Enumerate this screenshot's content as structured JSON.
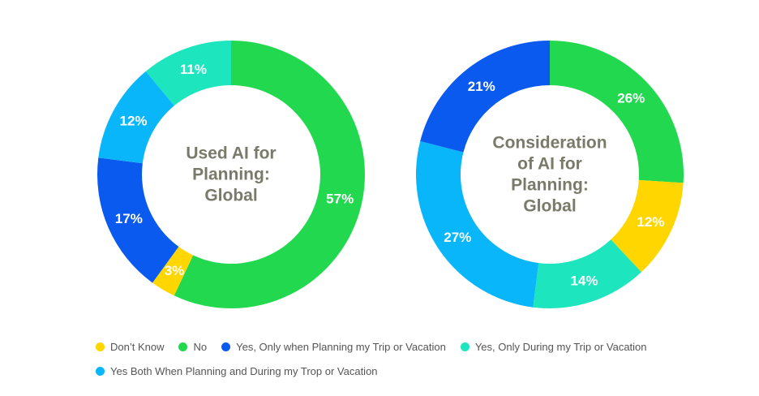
{
  "colors": {
    "dont_know": "#FFD600",
    "no": "#21D84F",
    "yes_planning": "#0A5AF0",
    "yes_during": "#1DE5BE",
    "yes_both": "#09B6FA",
    "center_text": "#7A7A6A",
    "label_text": "#FFFFFF"
  },
  "chart_data": [
    {
      "type": "pie",
      "style": "donut",
      "title_lines": [
        "Used AI for",
        "Planning:",
        "Global"
      ],
      "slices": [
        {
          "key": "no",
          "label": "No",
          "value": 57,
          "display": "57%"
        },
        {
          "key": "dont_know",
          "label": "Don't Know",
          "value": 3,
          "display": "3%"
        },
        {
          "key": "yes_planning",
          "label": "Yes, Only when Planning my Trip or Vacation",
          "value": 17,
          "display": "17%"
        },
        {
          "key": "yes_both",
          "label": "Yes Both When Planning and During my Trop or Vacation",
          "value": 12,
          "display": "12%"
        },
        {
          "key": "yes_during",
          "label": "Yes, Only During my Trip or Vacation",
          "value": 11,
          "display": "11%"
        }
      ]
    },
    {
      "type": "pie",
      "style": "donut",
      "title_lines": [
        "Consideration",
        "of AI for",
        "Planning:",
        "Global"
      ],
      "slices": [
        {
          "key": "no",
          "label": "No",
          "value": 26,
          "display": "26%"
        },
        {
          "key": "dont_know",
          "label": "Don't Know",
          "value": 12,
          "display": "12%"
        },
        {
          "key": "yes_during",
          "label": "Yes, Only During my Trip or Vacation",
          "value": 14,
          "display": "14%"
        },
        {
          "key": "yes_both",
          "label": "Yes Both When Planning and During my Trop or Vacation",
          "value": 27,
          "display": "27%"
        },
        {
          "key": "yes_planning",
          "label": "Yes, Only when Planning my Trip or Vacation",
          "value": 21,
          "display": "21%"
        }
      ]
    }
  ],
  "legend": {
    "rows": [
      [
        {
          "key": "dont_know",
          "label": "Don’t Know"
        },
        {
          "key": "no",
          "label": "No"
        },
        {
          "key": "yes_planning",
          "label": "Yes, Only when Planning my Trip or Vacation"
        },
        {
          "key": "yes_during",
          "label": "Yes, Only During my Trip or Vacation"
        }
      ],
      [
        {
          "key": "yes_both",
          "label": "Yes Both When Planning and During my Trop or Vacation"
        }
      ]
    ]
  }
}
